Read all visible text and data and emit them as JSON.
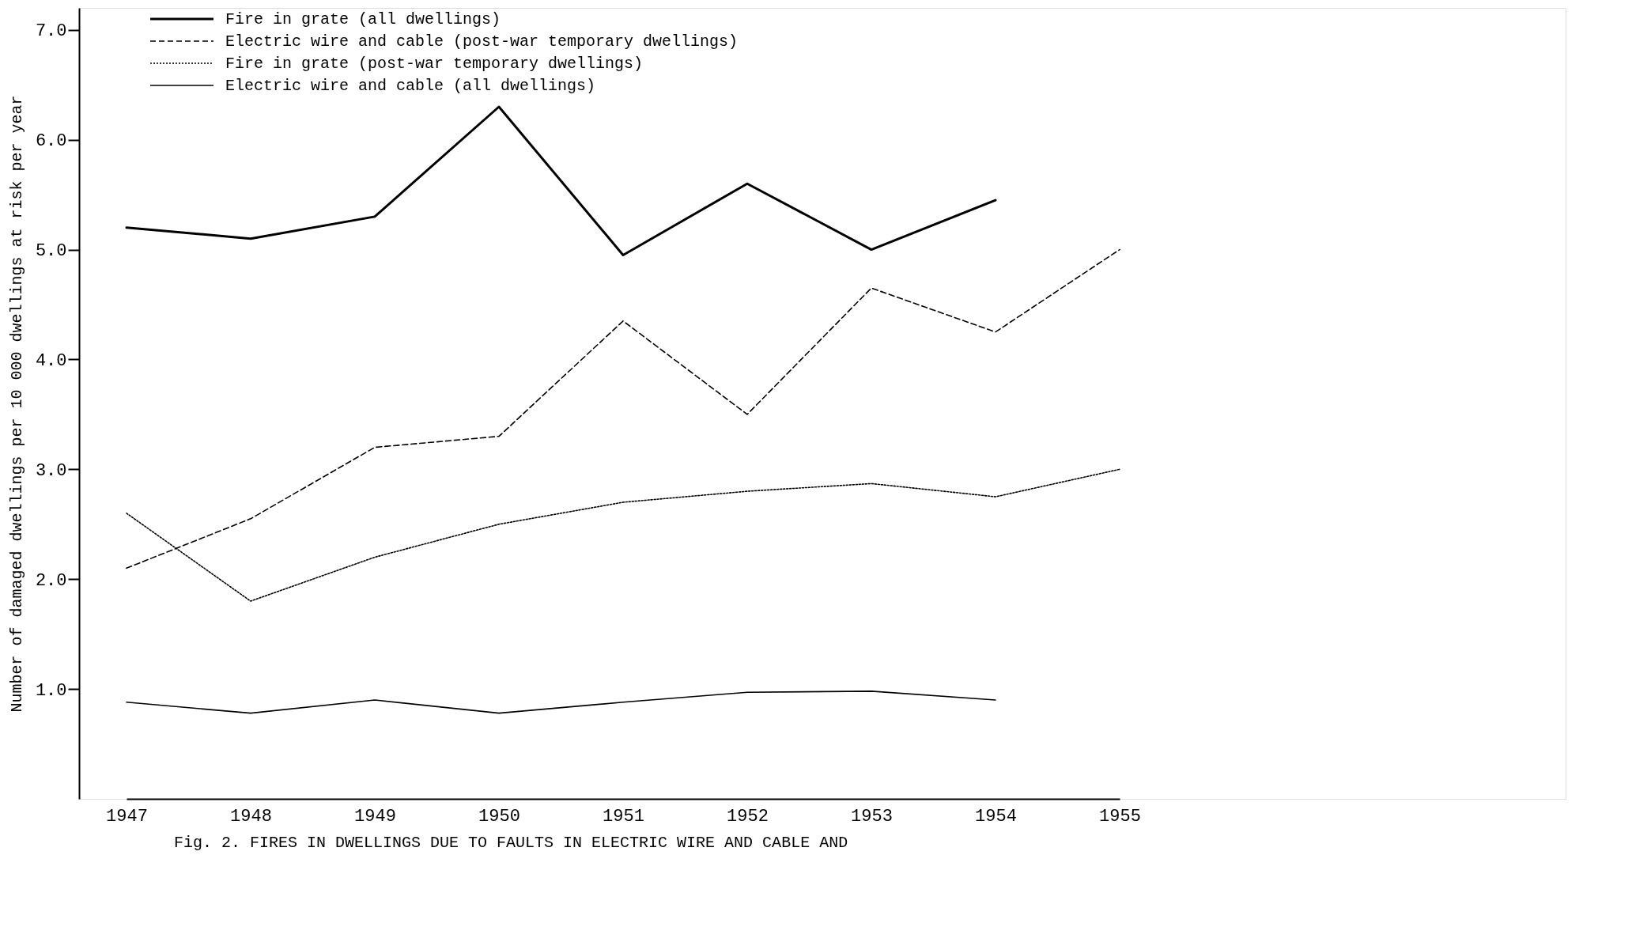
{
  "chart_data": {
    "type": "line",
    "ylabel": "Number of damaged dwellings per 10 000 dwellings at risk per year",
    "categories": [
      "1947",
      "1948",
      "1949",
      "1950",
      "1951",
      "1952",
      "1953",
      "1954",
      "1955"
    ],
    "series": [
      {
        "name": "Fire in grate (all dwellings)",
        "color": "#000000",
        "line_style": "solid",
        "values": [
          5.2,
          5.1,
          5.3,
          6.3,
          4.95,
          5.6,
          5.0,
          5.45,
          null
        ]
      },
      {
        "name": "Electric wire and cable (post-war temporary dwellings)",
        "color": "#000000",
        "line_style": "dashed",
        "values": [
          2.1,
          2.55,
          3.2,
          3.3,
          4.35,
          3.5,
          4.65,
          4.25,
          5.0
        ]
      },
      {
        "name": "Fire in grate (post-war temporary dwellings)",
        "color": "#000000",
        "line_style": "dotted",
        "values": [
          2.6,
          1.8,
          2.2,
          2.5,
          2.7,
          2.8,
          2.87,
          2.75,
          3.0
        ]
      },
      {
        "name": "Electric wire and cable (all dwellings)",
        "color": "#000000",
        "line_style": "solid",
        "values": [
          0.88,
          0.78,
          0.9,
          0.78,
          0.88,
          0.97,
          0.98,
          0.9,
          null
        ]
      }
    ],
    "ylim": [
      0,
      7.2
    ],
    "yticks": [
      {
        "value": 1,
        "label": "1.0"
      },
      {
        "value": 2,
        "label": "2.0"
      },
      {
        "value": 3,
        "label": "3.0"
      },
      {
        "value": 4,
        "label": "4.0"
      },
      {
        "value": 5,
        "label": "5.0"
      },
      {
        "value": 6,
        "label": "6.0"
      },
      {
        "value": 7,
        "label": "7.0"
      }
    ],
    "grid": false,
    "legend": "top left",
    "marker": "none",
    "annotations": [
      "Fig. 2. FIRES IN DWELLINGS DUE TO FAULTS IN ELECTRIC WIRE AND CABLE AND"
    ]
  }
}
